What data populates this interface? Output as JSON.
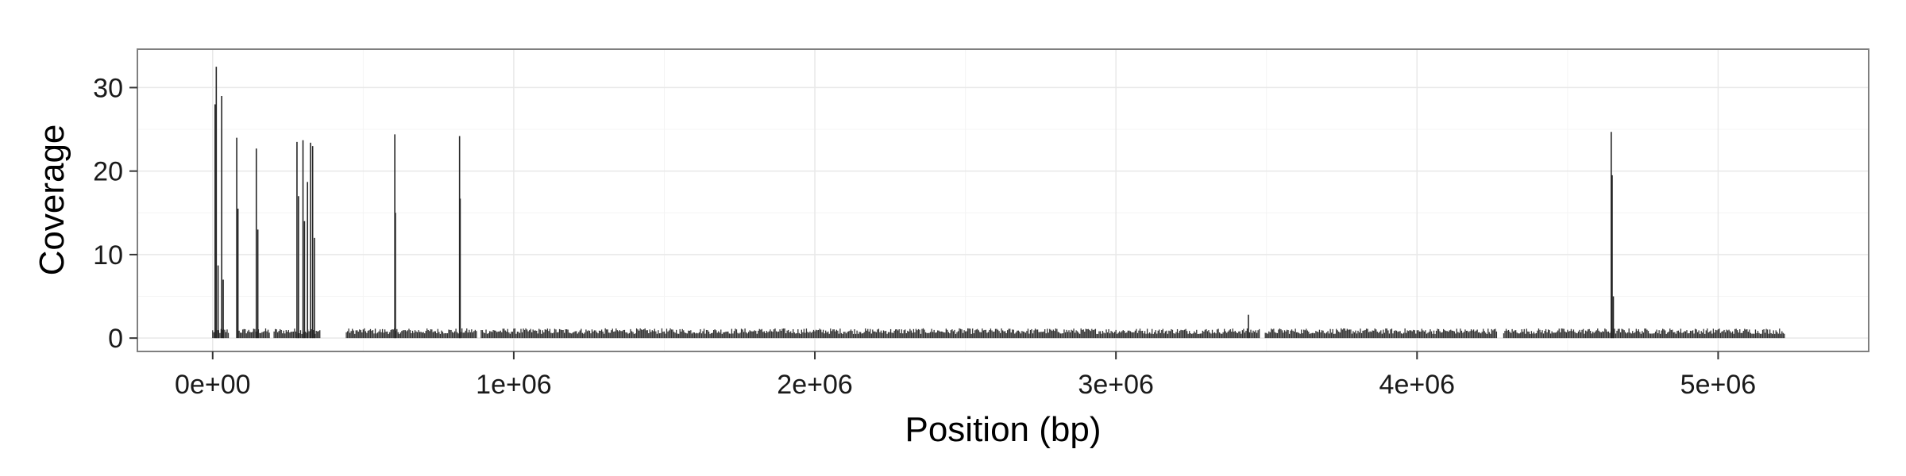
{
  "chart_data": {
    "type": "bar",
    "title": "",
    "xlabel": "Position (bp)",
    "ylabel": "Coverage",
    "xlim": [
      -250000,
      5500000
    ],
    "ylim": [
      -1.6,
      34.6
    ],
    "x_ticks": [
      0,
      1000000,
      2000000,
      3000000,
      4000000,
      5000000
    ],
    "x_tick_labels": [
      "0e+00",
      "1e+06",
      "2e+06",
      "3e+06",
      "4e+06",
      "5e+06"
    ],
    "y_ticks": [
      0,
      10,
      20,
      30
    ],
    "y_tick_labels": [
      "0",
      "10",
      "20",
      "30"
    ],
    "grid": true,
    "legend": "none",
    "data_range": [
      0,
      5220000
    ],
    "baseline_coverage": 0.9,
    "gaps": [
      [
        55000,
        85000
      ],
      [
        190000,
        200000
      ],
      [
        360000,
        440000
      ],
      [
        880000,
        890000
      ],
      [
        3480000,
        3495000
      ],
      [
        4265000,
        4285000
      ]
    ],
    "peaks": [
      {
        "x": 8000,
        "y": 28
      },
      {
        "x": 12000,
        "y": 32.5
      },
      {
        "x": 18000,
        "y": 8.7
      },
      {
        "x": 30000,
        "y": 29
      },
      {
        "x": 35000,
        "y": 7
      },
      {
        "x": 80000,
        "y": 24
      },
      {
        "x": 84000,
        "y": 15.5
      },
      {
        "x": 145000,
        "y": 22.7
      },
      {
        "x": 150000,
        "y": 13
      },
      {
        "x": 280000,
        "y": 23.5
      },
      {
        "x": 285000,
        "y": 17
      },
      {
        "x": 300000,
        "y": 23.7
      },
      {
        "x": 305000,
        "y": 14
      },
      {
        "x": 315000,
        "y": 18.7
      },
      {
        "x": 325000,
        "y": 23.4
      },
      {
        "x": 332000,
        "y": 23
      },
      {
        "x": 338000,
        "y": 12
      },
      {
        "x": 605000,
        "y": 24.4
      },
      {
        "x": 607000,
        "y": 15
      },
      {
        "x": 820000,
        "y": 24.2
      },
      {
        "x": 822000,
        "y": 16.7
      },
      {
        "x": 3440000,
        "y": 2.8
      },
      {
        "x": 4645000,
        "y": 24.7
      },
      {
        "x": 4648000,
        "y": 19.5
      },
      {
        "x": 4652000,
        "y": 5
      }
    ]
  }
}
